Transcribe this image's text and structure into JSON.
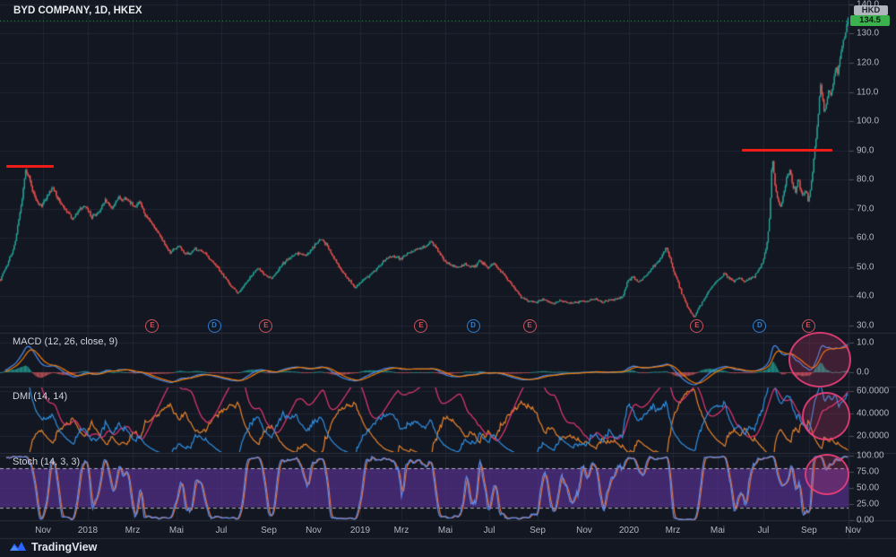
{
  "header": {
    "symbol_title": "BYD COMPANY, 1D, HKEX"
  },
  "price_axis": {
    "currency_label": "HKD",
    "last_price_label": "134.5",
    "ticks": [
      "140.0",
      "130.0",
      "120.0",
      "110.0",
      "100.0",
      "90.0",
      "80.0",
      "70.0",
      "60.0",
      "50.0",
      "40.0",
      "30.0"
    ]
  },
  "indicator_axes": {
    "macd": [
      "10.0",
      "0.0"
    ],
    "dmi": [
      "60.0000",
      "40.0000",
      "20.0000"
    ],
    "stoch": [
      "100.00",
      "75.00",
      "50.00",
      "25.00",
      "0.00"
    ]
  },
  "panes": {
    "macd_label": "MACD (12, 26, close, 9)",
    "dmi_label": "DMI (14, 14)",
    "stoch_label": "Stoch (14, 3, 3)"
  },
  "time_axis": [
    {
      "label": "Nov",
      "x": 0.0507
    },
    {
      "label": "2018",
      "x": 0.1035
    },
    {
      "label": "Mrz",
      "x": 0.1563
    },
    {
      "label": "Mai",
      "x": 0.208
    },
    {
      "label": "Jul",
      "x": 0.2608
    },
    {
      "label": "Sep",
      "x": 0.3168
    },
    {
      "label": "Nov",
      "x": 0.3696
    },
    {
      "label": "2019",
      "x": 0.4245
    },
    {
      "label": "Mrz",
      "x": 0.4731
    },
    {
      "label": "Mai",
      "x": 0.5248
    },
    {
      "label": "Jul",
      "x": 0.5766
    },
    {
      "label": "Sep",
      "x": 0.6336
    },
    {
      "label": "Nov",
      "x": 0.6885
    },
    {
      "label": "2020",
      "x": 0.7413
    },
    {
      "label": "Mrz",
      "x": 0.793
    },
    {
      "label": "Mai",
      "x": 0.8458
    },
    {
      "label": "Jul",
      "x": 0.8997
    },
    {
      "label": "Sep",
      "x": 0.9535
    },
    {
      "label": "Nov",
      "x": 1.0053
    }
  ],
  "footer": {
    "logo_text": "TradingView"
  },
  "chart_data": {
    "type": "candlestick",
    "title": "BYD COMPANY, 1D, HKEX",
    "currency": "HKD",
    "last_price": 134.5,
    "x_range": [
      "Okt 2017",
      "Nov 2020"
    ],
    "y_axis": {
      "visible_range": [
        27.5,
        141.5
      ],
      "ticks": [
        140,
        130,
        120,
        110,
        100,
        90,
        80,
        70,
        60,
        50,
        40,
        30
      ]
    },
    "candle_colors": {
      "up": "#26a69a",
      "down": "#ef5350"
    },
    "last_price_line_color": "#3bb24e",
    "price_keyframes": [
      [
        0.0,
        46
      ],
      [
        0.008,
        51
      ],
      [
        0.016,
        57
      ],
      [
        0.024,
        70
      ],
      [
        0.03,
        84
      ],
      [
        0.034,
        80
      ],
      [
        0.04,
        74
      ],
      [
        0.048,
        71
      ],
      [
        0.056,
        75
      ],
      [
        0.062,
        77
      ],
      [
        0.07,
        72
      ],
      [
        0.078,
        69
      ],
      [
        0.085,
        66
      ],
      [
        0.093,
        70
      ],
      [
        0.1,
        71
      ],
      [
        0.108,
        67
      ],
      [
        0.116,
        69
      ],
      [
        0.124,
        73
      ],
      [
        0.132,
        70
      ],
      [
        0.14,
        74
      ],
      [
        0.15,
        73
      ],
      [
        0.158,
        71
      ],
      [
        0.165,
        72
      ],
      [
        0.172,
        67
      ],
      [
        0.18,
        64
      ],
      [
        0.19,
        60
      ],
      [
        0.2,
        55
      ],
      [
        0.21,
        57
      ],
      [
        0.22,
        54
      ],
      [
        0.23,
        56
      ],
      [
        0.24,
        55
      ],
      [
        0.25,
        52
      ],
      [
        0.258,
        49
      ],
      [
        0.266,
        46
      ],
      [
        0.274,
        43
      ],
      [
        0.281,
        41
      ],
      [
        0.288,
        44
      ],
      [
        0.296,
        47
      ],
      [
        0.304,
        50
      ],
      [
        0.312,
        47
      ],
      [
        0.32,
        46
      ],
      [
        0.33,
        50
      ],
      [
        0.34,
        53
      ],
      [
        0.35,
        55
      ],
      [
        0.36,
        54
      ],
      [
        0.37,
        57
      ],
      [
        0.378,
        60
      ],
      [
        0.386,
        57
      ],
      [
        0.394,
        53
      ],
      [
        0.402,
        49
      ],
      [
        0.41,
        46
      ],
      [
        0.418,
        43
      ],
      [
        0.426,
        45
      ],
      [
        0.434,
        47
      ],
      [
        0.442,
        49
      ],
      [
        0.452,
        52
      ],
      [
        0.462,
        54
      ],
      [
        0.472,
        53
      ],
      [
        0.482,
        55
      ],
      [
        0.492,
        56
      ],
      [
        0.5,
        57
      ],
      [
        0.508,
        59
      ],
      [
        0.515,
        56
      ],
      [
        0.522,
        53
      ],
      [
        0.53,
        51
      ],
      [
        0.54,
        50
      ],
      [
        0.55,
        51
      ],
      [
        0.558,
        50
      ],
      [
        0.566,
        52
      ],
      [
        0.574,
        50
      ],
      [
        0.582,
        51
      ],
      [
        0.59,
        49
      ],
      [
        0.598,
        46
      ],
      [
        0.606,
        43
      ],
      [
        0.614,
        40
      ],
      [
        0.622,
        38.5
      ],
      [
        0.632,
        38
      ],
      [
        0.642,
        39
      ],
      [
        0.652,
        37.5
      ],
      [
        0.662,
        38.5
      ],
      [
        0.672,
        37.5
      ],
      [
        0.682,
        38
      ],
      [
        0.692,
        38.5
      ],
      [
        0.702,
        39
      ],
      [
        0.71,
        38
      ],
      [
        0.718,
        38.5
      ],
      [
        0.726,
        39
      ],
      [
        0.734,
        40
      ],
      [
        0.74,
        45
      ],
      [
        0.746,
        47
      ],
      [
        0.752,
        45
      ],
      [
        0.758,
        46
      ],
      [
        0.764,
        48
      ],
      [
        0.77,
        50
      ],
      [
        0.776,
        52
      ],
      [
        0.782,
        55
      ],
      [
        0.786,
        57
      ],
      [
        0.79,
        53
      ],
      [
        0.794,
        49
      ],
      [
        0.799,
        45
      ],
      [
        0.804,
        41
      ],
      [
        0.81,
        37
      ],
      [
        0.815,
        34
      ],
      [
        0.819,
        33
      ],
      [
        0.824,
        36
      ],
      [
        0.83,
        39
      ],
      [
        0.836,
        42
      ],
      [
        0.842,
        44
      ],
      [
        0.848,
        46
      ],
      [
        0.854,
        48
      ],
      [
        0.86,
        46
      ],
      [
        0.866,
        45
      ],
      [
        0.872,
        46.5
      ],
      [
        0.878,
        45
      ],
      [
        0.884,
        46
      ],
      [
        0.89,
        47
      ],
      [
        0.895,
        49
      ],
      [
        0.9,
        52
      ],
      [
        0.904,
        57
      ],
      [
        0.907,
        65
      ],
      [
        0.909,
        75
      ],
      [
        0.9105,
        88.5
      ],
      [
        0.9125,
        82
      ],
      [
        0.915,
        76
      ],
      [
        0.918,
        72
      ],
      [
        0.921,
        71
      ],
      [
        0.925,
        76
      ],
      [
        0.928,
        81
      ],
      [
        0.932,
        83
      ],
      [
        0.935,
        78
      ],
      [
        0.938,
        76
      ],
      [
        0.941,
        80
      ],
      [
        0.944,
        77
      ],
      [
        0.947,
        74
      ],
      [
        0.95,
        77
      ],
      [
        0.953,
        73
      ],
      [
        0.956,
        76
      ],
      [
        0.958,
        82
      ],
      [
        0.96,
        88
      ],
      [
        0.963,
        96
      ],
      [
        0.966,
        106
      ],
      [
        0.968,
        114
      ],
      [
        0.97,
        108
      ],
      [
        0.972,
        102
      ],
      [
        0.975,
        107
      ],
      [
        0.978,
        112
      ],
      [
        0.98,
        108
      ],
      [
        0.983,
        113
      ],
      [
        0.986,
        119
      ],
      [
        0.988,
        116
      ],
      [
        0.99,
        121
      ],
      [
        0.993,
        125
      ],
      [
        0.996,
        129
      ],
      [
        1.0,
        134.5
      ]
    ],
    "indicators": [
      {
        "type": "MACD",
        "label": "MACD (12, 26, close, 9)",
        "params": {
          "fast": 12,
          "slow": 26,
          "source": "close",
          "signal": 9
        },
        "visible_range": [
          -4.8,
          13
        ],
        "axis_ticks": [
          10,
          0
        ],
        "colors": {
          "macd": "#4a8df0",
          "signal": "#f57c00",
          "hist_pos": "#26a69a",
          "hist_neg": "#d75a5f"
        }
      },
      {
        "type": "DMI",
        "label": "DMI (14, 14)",
        "params": {
          "di_length": 14,
          "adx_smoothing": 14
        },
        "visible_range": [
          5.6,
          63.2
        ],
        "axis_ticks": [
          60,
          40,
          20
        ],
        "colors": {
          "plus_di": "#2f8fe0",
          "minus_di": "#e8842c",
          "adx": "#d festively"
        }
      },
      {
        "type": "Stochastic",
        "label": "Stoch (14, 3, 3)",
        "params": {
          "k": 14,
          "k_smoothing": 3,
          "d": 3
        },
        "visible_range": [
          -1.4,
          102.8
        ],
        "axis_ticks": [
          100,
          75,
          50,
          25,
          0
        ],
        "band": [
          20,
          80
        ],
        "colors": {
          "k": "#5b8df0",
          "d": "#e8733a",
          "band_fill": "rgba(103,52,170,0.55)",
          "band_lines": "rgba(255,255,255,0.65)"
        }
      }
    ],
    "event_markers": [
      {
        "type": "E",
        "x": 0.1795
      },
      {
        "type": "D",
        "x": 0.2524
      },
      {
        "type": "E",
        "x": 0.3136
      },
      {
        "type": "E",
        "x": 0.4963
      },
      {
        "type": "D",
        "x": 0.5576
      },
      {
        "type": "E",
        "x": 0.6241
      },
      {
        "type": "E",
        "x": 0.8215
      },
      {
        "type": "D",
        "x": 0.8954
      },
      {
        "type": "E",
        "x": 0.9525
      }
    ],
    "trend_lines": [
      {
        "x1": 0.0074,
        "x2": 0.0634,
        "price": 84.5,
        "color": "#ef1c17"
      },
      {
        "x1": 0.874,
        "x2": 0.981,
        "price": 90,
        "color": "#ef1c17"
      }
    ],
    "highlight_circles": [
      {
        "cx": 915,
        "cy": 401,
        "rx": 35,
        "ry": 31
      },
      {
        "cx": 922,
        "cy": 464,
        "rx": 27,
        "ry": 27
      },
      {
        "cx": 923,
        "cy": 529,
        "rx": 25,
        "ry": 23
      }
    ]
  }
}
